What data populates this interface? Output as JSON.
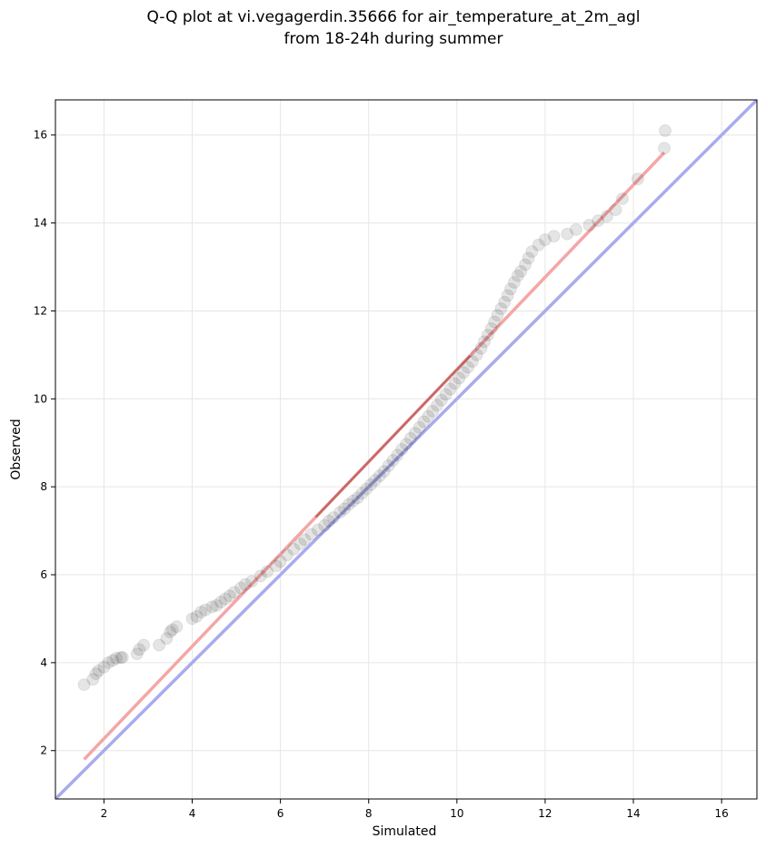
{
  "chart_data": {
    "type": "scatter",
    "title": "Q-Q plot at vi.vegagerdin.35666 for air_temperature_at_2m_agl",
    "subtitle": "from 18-24h during summer",
    "xlabel": "Simulated",
    "ylabel": "Observed",
    "xlim": [
      0.9,
      16.8
    ],
    "ylim": [
      0.9,
      16.8
    ],
    "xticks": [
      "2",
      "4",
      "6",
      "8",
      "10",
      "12",
      "14",
      "16"
    ],
    "yticks": [
      "2",
      "4",
      "6",
      "8",
      "10",
      "12",
      "14",
      "16"
    ],
    "grid": true,
    "points": {
      "x": [
        1.55,
        1.75,
        1.82,
        1.88,
        2.0,
        2.1,
        2.2,
        2.28,
        2.38,
        2.42,
        2.75,
        2.8,
        2.9,
        3.25,
        3.42,
        3.5,
        3.55,
        3.65,
        4.0,
        4.1,
        4.2,
        4.3,
        4.45,
        4.55,
        4.65,
        4.75,
        4.85,
        4.95,
        5.1,
        5.2,
        5.35,
        5.55,
        5.7,
        5.9,
        6.0,
        6.15,
        6.3,
        6.45,
        6.55,
        6.7,
        6.85,
        7.0,
        7.1,
        7.2,
        7.35,
        7.45,
        7.55,
        7.65,
        7.75,
        7.85,
        7.95,
        8.05,
        8.15,
        8.25,
        8.35,
        8.45,
        8.55,
        8.65,
        8.75,
        8.85,
        8.95,
        9.05,
        9.15,
        9.25,
        9.35,
        9.45,
        9.55,
        9.65,
        9.75,
        9.85,
        9.95,
        10.05,
        10.15,
        10.25,
        10.35,
        10.45,
        10.55,
        10.62,
        10.7,
        10.78,
        10.85,
        10.92,
        11.0,
        11.08,
        11.15,
        11.22,
        11.3,
        11.38,
        11.45,
        11.55,
        11.62,
        11.7,
        11.85,
        12.0,
        12.2,
        12.5,
        12.7,
        13.0,
        13.2,
        13.4,
        13.6,
        13.75,
        14.1,
        14.7,
        14.72
      ],
      "y": [
        3.5,
        3.62,
        3.75,
        3.82,
        3.9,
        4.0,
        4.05,
        4.1,
        4.12,
        4.12,
        4.2,
        4.3,
        4.4,
        4.4,
        4.55,
        4.7,
        4.75,
        4.82,
        5.0,
        5.05,
        5.15,
        5.2,
        5.27,
        5.3,
        5.38,
        5.45,
        5.52,
        5.6,
        5.7,
        5.78,
        5.85,
        5.97,
        6.07,
        6.2,
        6.3,
        6.45,
        6.58,
        6.7,
        6.8,
        6.92,
        7.02,
        7.12,
        7.22,
        7.3,
        7.42,
        7.5,
        7.6,
        7.68,
        7.75,
        7.85,
        7.95,
        8.05,
        8.15,
        8.25,
        8.35,
        8.48,
        8.6,
        8.72,
        8.85,
        8.97,
        9.1,
        9.22,
        9.35,
        9.48,
        9.6,
        9.72,
        9.85,
        9.97,
        10.1,
        10.22,
        10.35,
        10.47,
        10.6,
        10.72,
        10.85,
        11.0,
        11.15,
        11.3,
        11.45,
        11.6,
        11.75,
        11.9,
        12.05,
        12.2,
        12.35,
        12.5,
        12.65,
        12.8,
        12.9,
        13.05,
        13.2,
        13.35,
        13.5,
        13.62,
        13.7,
        13.75,
        13.85,
        13.95,
        14.05,
        14.15,
        14.3,
        14.55,
        15.0,
        15.7,
        16.1
      ]
    },
    "fit_line": {
      "x": [
        1.55,
        14.7
      ],
      "y": [
        1.8,
        15.6
      ],
      "color": "#f4a6a6"
    },
    "identity_line": {
      "x": [
        0.9,
        16.8
      ],
      "y": [
        0.9,
        16.8
      ],
      "color": "#aaaaee"
    },
    "point_color": "#000000",
    "fit_overlay_color": "#8b1a1a"
  }
}
